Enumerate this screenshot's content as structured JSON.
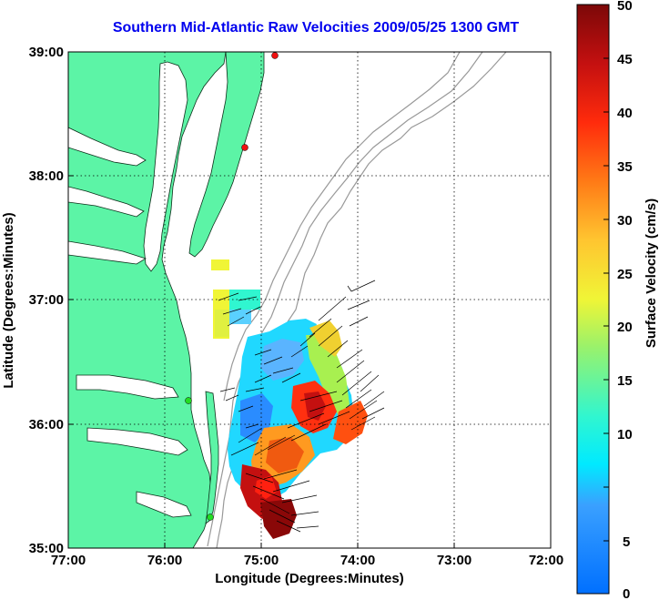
{
  "title": "Southern Mid-Atlantic Raw Velocities 2009/05/25 1300 GMT",
  "x_axis": {
    "label": "Longitude (Degrees:Minutes)",
    "ticks": [
      "77:00",
      "76:00",
      "75:00",
      "74:00",
      "73:00",
      "72:00"
    ]
  },
  "y_axis": {
    "label": "Latitude (Degrees:Minutes)",
    "ticks": [
      "39:00",
      "38:00",
      "37:00",
      "36:00",
      "35:00"
    ]
  },
  "colorbar": {
    "label": "Surface Velocity (cm/s)",
    "ticks": [
      "50",
      "45",
      "40",
      "35",
      "30",
      "25",
      "20",
      "15",
      "10",
      "5",
      "0"
    ],
    "min": 0,
    "max": 50
  },
  "colors": {
    "land": "#5cf4a6",
    "title": "#0000ee",
    "bathymetry": "#999999",
    "station_red": "#ee1111",
    "station_green": "#22dd22"
  },
  "map_extent": {
    "lon": [
      -77,
      -72
    ],
    "lat": [
      35,
      39
    ]
  },
  "stations": [
    {
      "lon": -74.87,
      "lat": 38.96,
      "color": "red"
    },
    {
      "lon": -75.16,
      "lat": 38.22,
      "color": "red"
    },
    {
      "lon": -75.72,
      "lat": 36.17,
      "color": "green"
    },
    {
      "lon": -75.52,
      "lat": 35.24,
      "color": "green"
    }
  ]
}
